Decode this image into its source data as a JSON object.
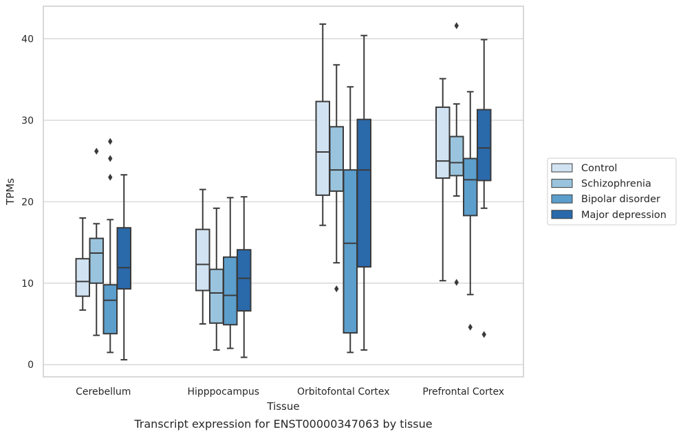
{
  "caption": "Transcript expression for ENST00000347063 by tissue",
  "chart_data": {
    "type": "box",
    "title": "",
    "xlabel": "Tissue",
    "ylabel": "TPMs",
    "ylim": [
      -1.5,
      44
    ],
    "yticks": [
      0,
      10,
      20,
      30,
      40
    ],
    "grid": "horizontal",
    "legend_position": "right",
    "categories": [
      "Cerebellum",
      "Hipppocampus",
      "Orbitofontal Cortex",
      "Prefrontal Cortex"
    ],
    "series": [
      {
        "name": "Control",
        "color": "#d1e2f2",
        "boxes": [
          {
            "whislo": 6.7,
            "q1": 8.4,
            "med": 10.2,
            "q3": 13.0,
            "whishi": 18.0,
            "fliers": []
          },
          {
            "whislo": 5.0,
            "q1": 9.1,
            "med": 12.3,
            "q3": 16.6,
            "whishi": 21.5,
            "fliers": []
          },
          {
            "whislo": 17.1,
            "q1": 20.8,
            "med": 26.1,
            "q3": 32.3,
            "whishi": 41.8,
            "fliers": []
          },
          {
            "whislo": 10.3,
            "q1": 22.9,
            "med": 25.0,
            "q3": 31.6,
            "whishi": 35.1,
            "fliers": []
          }
        ]
      },
      {
        "name": "Schizophrenia",
        "color": "#9ac4de",
        "boxes": [
          {
            "whislo": 3.6,
            "q1": 10.0,
            "med": 13.7,
            "q3": 15.5,
            "whishi": 17.3,
            "fliers": [
              26.2
            ]
          },
          {
            "whislo": 1.8,
            "q1": 5.1,
            "med": 8.8,
            "q3": 11.7,
            "whishi": 19.2,
            "fliers": []
          },
          {
            "whislo": 12.5,
            "q1": 21.3,
            "med": 23.9,
            "q3": 29.2,
            "whishi": 36.8,
            "fliers": [
              9.3
            ]
          },
          {
            "whislo": 20.7,
            "q1": 23.2,
            "med": 24.8,
            "q3": 28.0,
            "whishi": 32.0,
            "fliers": [
              10.1,
              41.6
            ]
          }
        ]
      },
      {
        "name": "Bipolar disorder",
        "color": "#5c9ecc",
        "boxes": [
          {
            "whislo": 1.5,
            "q1": 3.8,
            "med": 7.9,
            "q3": 9.8,
            "whishi": 17.8,
            "fliers": [
              27.4,
              25.3,
              23.0
            ]
          },
          {
            "whislo": 2.0,
            "q1": 4.9,
            "med": 8.5,
            "q3": 13.2,
            "whishi": 20.5,
            "fliers": []
          },
          {
            "whislo": 1.5,
            "q1": 3.9,
            "med": 14.9,
            "q3": 23.9,
            "whishi": 34.1,
            "fliers": []
          },
          {
            "whislo": 8.6,
            "q1": 18.3,
            "med": 22.7,
            "q3": 25.3,
            "whishi": 33.5,
            "fliers": [
              4.6
            ]
          }
        ]
      },
      {
        "name": "Major depression",
        "color": "#2a69aa",
        "boxes": [
          {
            "whislo": 0.6,
            "q1": 9.3,
            "med": 11.9,
            "q3": 16.8,
            "whishi": 23.3,
            "fliers": []
          },
          {
            "whislo": 0.9,
            "q1": 6.6,
            "med": 10.6,
            "q3": 14.1,
            "whishi": 20.6,
            "fliers": []
          },
          {
            "whislo": 1.8,
            "q1": 12.0,
            "med": 23.9,
            "q3": 30.1,
            "whishi": 40.4,
            "fliers": []
          },
          {
            "whislo": 19.2,
            "q1": 22.6,
            "med": 26.6,
            "q3": 31.3,
            "whishi": 39.9,
            "fliers": [
              3.7
            ]
          }
        ]
      }
    ]
  }
}
